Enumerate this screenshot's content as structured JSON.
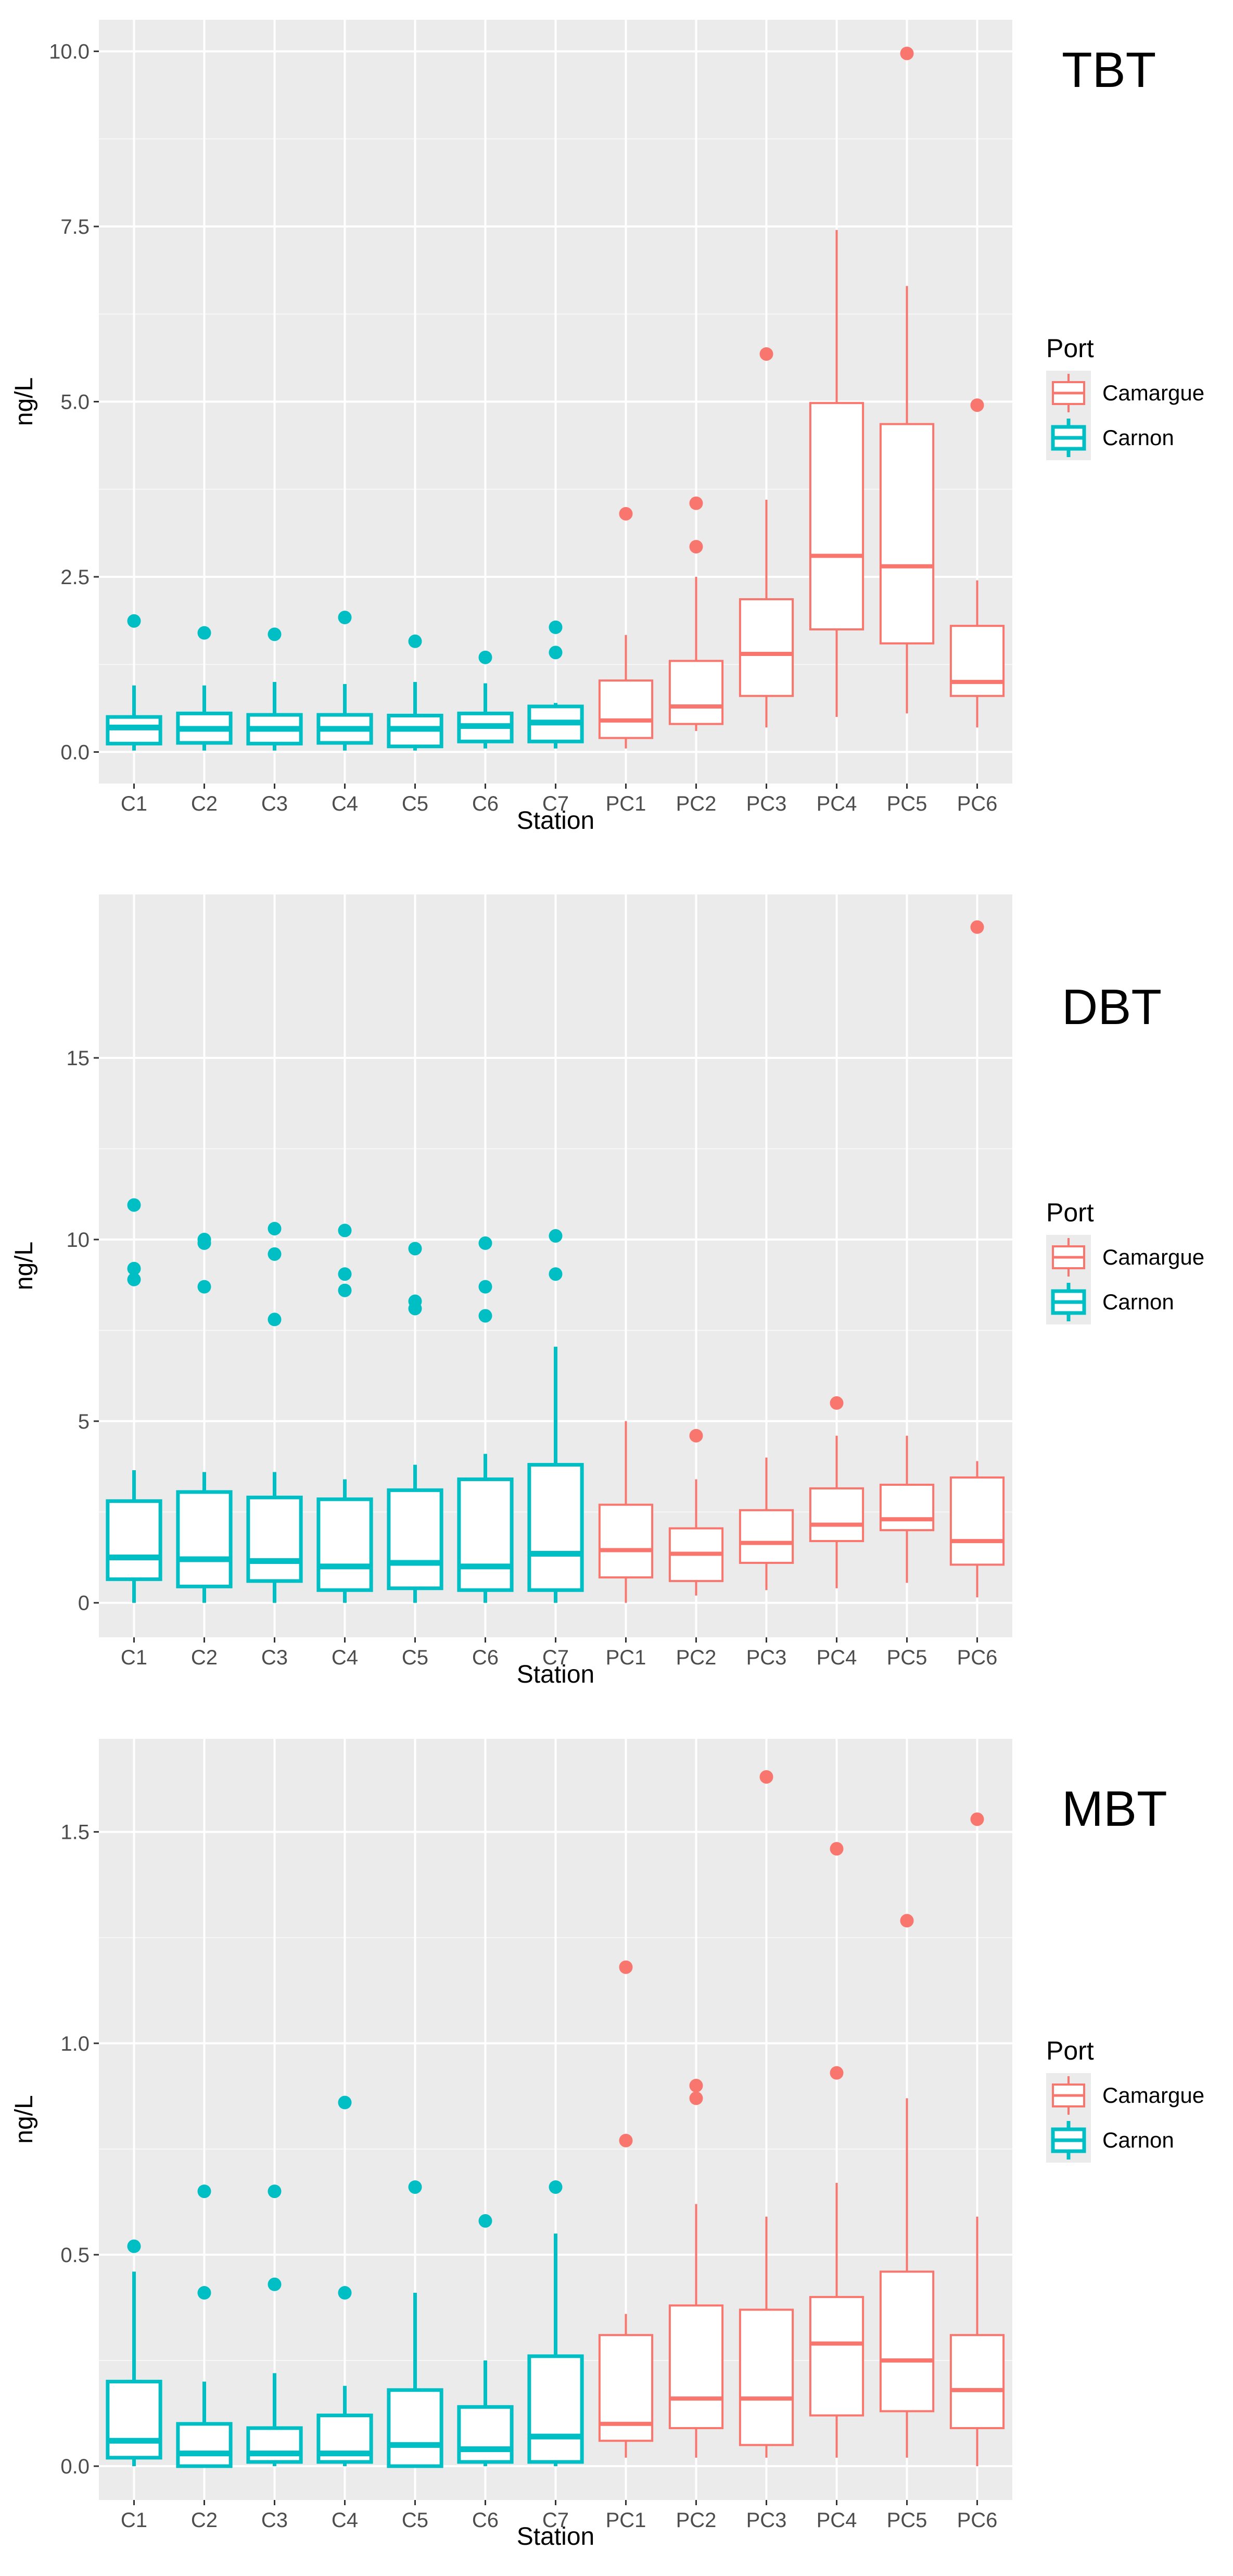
{
  "chart_data": [
    {
      "type": "boxplot",
      "title": "TBT",
      "xlabel": "Station",
      "ylabel": "ng/L",
      "ylim": [
        -0.45,
        10.45
      ],
      "yticks": [
        0.0,
        2.5,
        5.0,
        7.5,
        10.0
      ],
      "ytick_labels": [
        "0.0",
        "2.5",
        "5.0",
        "7.5",
        "10.0"
      ],
      "grid": true,
      "legend": {
        "title": "Port",
        "entries": [
          "Camargue",
          "Carnon"
        ],
        "placement": "right"
      },
      "series_colors": {
        "Camargue": "#F8766D",
        "Carnon": "#00BFC4"
      },
      "categories": [
        "C1",
        "C2",
        "C3",
        "C4",
        "C5",
        "C6",
        "C7",
        "PC1",
        "PC2",
        "PC3",
        "PC4",
        "PC5",
        "PC6"
      ],
      "boxes": [
        {
          "station": "C1",
          "port": "Carnon",
          "min": 0.02,
          "q1": 0.12,
          "median": 0.35,
          "q3": 0.5,
          "max": 0.95,
          "outliers": [
            1.87
          ]
        },
        {
          "station": "C2",
          "port": "Carnon",
          "min": 0.02,
          "q1": 0.13,
          "median": 0.33,
          "q3": 0.55,
          "max": 0.95,
          "outliers": [
            1.7
          ]
        },
        {
          "station": "C3",
          "port": "Carnon",
          "min": 0.02,
          "q1": 0.12,
          "median": 0.33,
          "q3": 0.53,
          "max": 1.0,
          "outliers": [
            1.68
          ]
        },
        {
          "station": "C4",
          "port": "Carnon",
          "min": 0.02,
          "q1": 0.13,
          "median": 0.33,
          "q3": 0.53,
          "max": 0.97,
          "outliers": [
            1.92
          ]
        },
        {
          "station": "C5",
          "port": "Carnon",
          "min": 0.02,
          "q1": 0.08,
          "median": 0.33,
          "q3": 0.52,
          "max": 1.0,
          "outliers": [
            1.58
          ]
        },
        {
          "station": "C6",
          "port": "Carnon",
          "min": 0.05,
          "q1": 0.15,
          "median": 0.37,
          "q3": 0.55,
          "max": 0.98,
          "outliers": [
            1.35
          ]
        },
        {
          "station": "C7",
          "port": "Carnon",
          "min": 0.05,
          "q1": 0.15,
          "median": 0.42,
          "q3": 0.65,
          "max": 0.7,
          "outliers": [
            1.42,
            1.78
          ]
        },
        {
          "station": "PC1",
          "port": "Camargue",
          "min": 0.05,
          "q1": 0.2,
          "median": 0.45,
          "q3": 1.02,
          "max": 1.67,
          "outliers": [
            3.4
          ]
        },
        {
          "station": "PC2",
          "port": "Camargue",
          "min": 0.3,
          "q1": 0.4,
          "median": 0.65,
          "q3": 1.3,
          "max": 2.5,
          "outliers": [
            2.93,
            3.55
          ]
        },
        {
          "station": "PC3",
          "port": "Camargue",
          "min": 0.35,
          "q1": 0.8,
          "median": 1.4,
          "q3": 2.18,
          "max": 3.6,
          "outliers": [
            5.68
          ]
        },
        {
          "station": "PC4",
          "port": "Camargue",
          "min": 0.5,
          "q1": 1.75,
          "median": 2.8,
          "q3": 4.98,
          "max": 7.45,
          "outliers": []
        },
        {
          "station": "PC5",
          "port": "Camargue",
          "min": 0.55,
          "q1": 1.55,
          "median": 2.65,
          "q3": 4.68,
          "max": 6.65,
          "outliers": [
            9.97
          ]
        },
        {
          "station": "PC6",
          "port": "Camargue",
          "min": 0.35,
          "q1": 0.8,
          "median": 1.0,
          "q3": 1.8,
          "max": 2.45,
          "outliers": [
            4.95
          ]
        }
      ]
    },
    {
      "type": "boxplot",
      "title": "DBT",
      "xlabel": "Station",
      "ylabel": "ng/L",
      "ylim": [
        -0.95,
        19.5
      ],
      "yticks": [
        0,
        5,
        10,
        15
      ],
      "ytick_labels": [
        "0",
        "5",
        "10",
        "15"
      ],
      "grid": true,
      "legend": {
        "title": "Port",
        "entries": [
          "Camargue",
          "Carnon"
        ],
        "placement": "right"
      },
      "series_colors": {
        "Camargue": "#F8766D",
        "Carnon": "#00BFC4"
      },
      "categories": [
        "C1",
        "C2",
        "C3",
        "C4",
        "C5",
        "C6",
        "C7",
        "PC1",
        "PC2",
        "PC3",
        "PC4",
        "PC5",
        "PC6"
      ],
      "boxes": [
        {
          "station": "C1",
          "port": "Carnon",
          "min": 0.0,
          "q1": 0.65,
          "median": 1.25,
          "q3": 2.8,
          "max": 3.65,
          "outliers": [
            8.9,
            9.2,
            10.95
          ]
        },
        {
          "station": "C2",
          "port": "Carnon",
          "min": 0.0,
          "q1": 0.45,
          "median": 1.2,
          "q3": 3.05,
          "max": 3.6,
          "outliers": [
            8.7,
            9.9,
            10.0
          ]
        },
        {
          "station": "C3",
          "port": "Carnon",
          "min": 0.0,
          "q1": 0.6,
          "median": 1.15,
          "q3": 2.9,
          "max": 3.6,
          "outliers": [
            7.8,
            9.6,
            10.3
          ]
        },
        {
          "station": "C4",
          "port": "Carnon",
          "min": 0.0,
          "q1": 0.35,
          "median": 1.0,
          "q3": 2.85,
          "max": 3.4,
          "outliers": [
            8.6,
            9.05,
            10.25
          ]
        },
        {
          "station": "C5",
          "port": "Carnon",
          "min": 0.0,
          "q1": 0.4,
          "median": 1.1,
          "q3": 3.1,
          "max": 3.8,
          "outliers": [
            8.1,
            8.3,
            9.75
          ]
        },
        {
          "station": "C6",
          "port": "Carnon",
          "min": 0.0,
          "q1": 0.35,
          "median": 1.0,
          "q3": 3.4,
          "max": 4.1,
          "outliers": [
            7.9,
            8.7,
            9.9
          ]
        },
        {
          "station": "C7",
          "port": "Carnon",
          "min": 0.0,
          "q1": 0.35,
          "median": 1.35,
          "q3": 3.8,
          "max": 7.05,
          "outliers": [
            9.05,
            10.1
          ]
        },
        {
          "station": "PC1",
          "port": "Camargue",
          "min": 0.0,
          "q1": 0.7,
          "median": 1.45,
          "q3": 2.7,
          "max": 5.0,
          "outliers": []
        },
        {
          "station": "PC2",
          "port": "Camargue",
          "min": 0.2,
          "q1": 0.6,
          "median": 1.35,
          "q3": 2.05,
          "max": 3.4,
          "outliers": [
            4.6
          ]
        },
        {
          "station": "PC3",
          "port": "Camargue",
          "min": 0.35,
          "q1": 1.1,
          "median": 1.65,
          "q3": 2.55,
          "max": 4.0,
          "outliers": []
        },
        {
          "station": "PC4",
          "port": "Camargue",
          "min": 0.4,
          "q1": 1.7,
          "median": 2.15,
          "q3": 3.15,
          "max": 4.6,
          "outliers": [
            5.5
          ]
        },
        {
          "station": "PC5",
          "port": "Camargue",
          "min": 0.55,
          "q1": 2.0,
          "median": 2.3,
          "q3": 3.25,
          "max": 4.6,
          "outliers": []
        },
        {
          "station": "PC6",
          "port": "Camargue",
          "min": 0.15,
          "q1": 1.05,
          "median": 1.7,
          "q3": 3.45,
          "max": 3.9,
          "outliers": [
            18.6
          ]
        }
      ]
    },
    {
      "type": "boxplot",
      "title": "MBT",
      "xlabel": "Station",
      "ylabel": "ng/L",
      "ylim": [
        -0.08,
        1.72
      ],
      "yticks": [
        0.0,
        0.5,
        1.0,
        1.5
      ],
      "ytick_labels": [
        "0.0",
        "0.5",
        "1.0",
        "1.5"
      ],
      "grid": true,
      "legend": {
        "title": "Port",
        "entries": [
          "Camargue",
          "Carnon"
        ],
        "placement": "right"
      },
      "series_colors": {
        "Camargue": "#F8766D",
        "Carnon": "#00BFC4"
      },
      "categories": [
        "C1",
        "C2",
        "C3",
        "C4",
        "C5",
        "C6",
        "C7",
        "PC1",
        "PC2",
        "PC3",
        "PC4",
        "PC5",
        "PC6"
      ],
      "boxes": [
        {
          "station": "C1",
          "port": "Carnon",
          "min": 0.0,
          "q1": 0.02,
          "median": 0.06,
          "q3": 0.2,
          "max": 0.46,
          "outliers": [
            0.52
          ]
        },
        {
          "station": "C2",
          "port": "Carnon",
          "min": 0.0,
          "q1": 0.0,
          "median": 0.03,
          "q3": 0.1,
          "max": 0.2,
          "outliers": [
            0.41,
            0.65
          ]
        },
        {
          "station": "C3",
          "port": "Carnon",
          "min": 0.0,
          "q1": 0.01,
          "median": 0.03,
          "q3": 0.09,
          "max": 0.22,
          "outliers": [
            0.43,
            0.65
          ]
        },
        {
          "station": "C4",
          "port": "Carnon",
          "min": 0.0,
          "q1": 0.01,
          "median": 0.03,
          "q3": 0.12,
          "max": 0.19,
          "outliers": [
            0.41,
            0.86
          ]
        },
        {
          "station": "C5",
          "port": "Carnon",
          "min": 0.0,
          "q1": 0.0,
          "median": 0.05,
          "q3": 0.18,
          "max": 0.41,
          "outliers": [
            0.66
          ]
        },
        {
          "station": "C6",
          "port": "Carnon",
          "min": 0.0,
          "q1": 0.01,
          "median": 0.04,
          "q3": 0.14,
          "max": 0.25,
          "outliers": [
            0.58
          ]
        },
        {
          "station": "C7",
          "port": "Carnon",
          "min": 0.0,
          "q1": 0.01,
          "median": 0.07,
          "q3": 0.26,
          "max": 0.55,
          "outliers": [
            0.66
          ]
        },
        {
          "station": "PC1",
          "port": "Camargue",
          "min": 0.02,
          "q1": 0.06,
          "median": 0.1,
          "q3": 0.31,
          "max": 0.36,
          "outliers": [
            0.77,
            1.18
          ]
        },
        {
          "station": "PC2",
          "port": "Camargue",
          "min": 0.02,
          "q1": 0.09,
          "median": 0.16,
          "q3": 0.38,
          "max": 0.62,
          "outliers": [
            0.87,
            0.9
          ]
        },
        {
          "station": "PC3",
          "port": "Camargue",
          "min": 0.02,
          "q1": 0.05,
          "median": 0.16,
          "q3": 0.37,
          "max": 0.59,
          "outliers": [
            1.63
          ]
        },
        {
          "station": "PC4",
          "port": "Camargue",
          "min": 0.02,
          "q1": 0.12,
          "median": 0.29,
          "q3": 0.4,
          "max": 0.67,
          "outliers": [
            0.93,
            1.46
          ]
        },
        {
          "station": "PC5",
          "port": "Camargue",
          "min": 0.02,
          "q1": 0.13,
          "median": 0.25,
          "q3": 0.46,
          "max": 0.87,
          "outliers": [
            1.29
          ]
        },
        {
          "station": "PC6",
          "port": "Camargue",
          "min": 0.0,
          "q1": 0.09,
          "median": 0.18,
          "q3": 0.31,
          "max": 0.59,
          "outliers": [
            1.53
          ]
        }
      ]
    }
  ]
}
